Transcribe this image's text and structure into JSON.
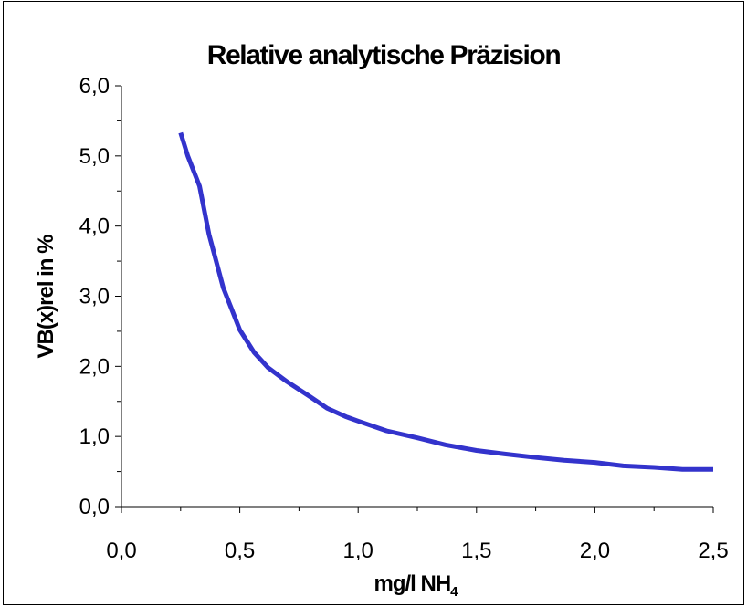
{
  "chart_data": {
    "type": "line",
    "title": "Relative analytische Präzision",
    "xlabel": "mg/l NH",
    "xlabel_sub": "4",
    "ylabel": "VB(x)rel in %",
    "xlim": [
      0.0,
      2.5
    ],
    "ylim": [
      0.0,
      6.0
    ],
    "xticks": [
      0.0,
      0.5,
      1.0,
      1.5,
      2.0,
      2.5
    ],
    "xtick_labels": [
      "0,0",
      "0,5",
      "1,0",
      "1,5",
      "2,0",
      "2,5"
    ],
    "yticks": [
      0.0,
      1.0,
      2.0,
      3.0,
      4.0,
      5.0,
      6.0
    ],
    "ytick_labels": [
      "0,0",
      "1,0",
      "2,0",
      "3,0",
      "4,0",
      "5,0",
      "6,0"
    ],
    "grid": false,
    "legend": "none",
    "series": [
      {
        "color": "#3333cc",
        "x": [
          0.25,
          0.28,
          0.33,
          0.37,
          0.43,
          0.5,
          0.56,
          0.62,
          0.7,
          0.8,
          0.87,
          0.95,
          1.0,
          1.12,
          1.25,
          1.37,
          1.5,
          1.62,
          1.75,
          1.87,
          2.0,
          2.12,
          2.25,
          2.37,
          2.5
        ],
        "y": [
          5.33,
          5.0,
          4.57,
          3.88,
          3.12,
          2.52,
          2.2,
          1.98,
          1.78,
          1.56,
          1.4,
          1.28,
          1.22,
          1.08,
          0.98,
          0.88,
          0.8,
          0.75,
          0.7,
          0.66,
          0.63,
          0.58,
          0.56,
          0.53,
          0.53
        ]
      }
    ]
  }
}
